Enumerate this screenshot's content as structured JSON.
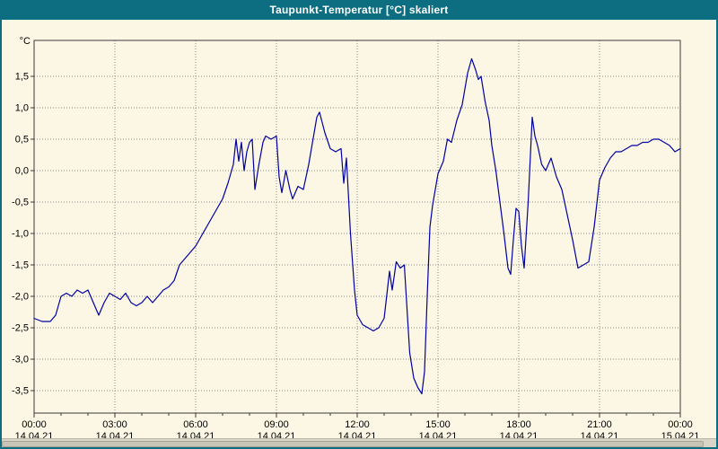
{
  "window": {
    "title": "Taupunkt-Temperatur [°C] skaliert"
  },
  "colors": {
    "titlebar": "#0C6E80",
    "background": "#FBF7E4",
    "line": "#0000A0",
    "grid": "#8a8a8a",
    "plot_border": "#3a3a3a",
    "label_text": "#000000"
  },
  "chart_data": {
    "type": "line",
    "title": "Taupunkt-Temperatur [°C] skaliert",
    "grid": "dotted",
    "legend": "none",
    "y_axis": {
      "unit_label": "°C",
      "min": -3.86,
      "max": 2.07,
      "tick_step": 0.5,
      "tick_values": [
        1.5,
        1.0,
        0.5,
        0.0,
        -0.5,
        -1.0,
        -1.5,
        -2.0,
        -2.5,
        -3.0,
        -3.5
      ],
      "tick_labels": [
        "1,5",
        "1,0",
        "0,5",
        "0,0",
        "-0,5",
        "-1,0",
        "-1,5",
        "-2,0",
        "-2,5",
        "-3,0",
        "-3,5"
      ]
    },
    "x_axis": {
      "min_hour": 0,
      "max_hour": 24,
      "tick_hours": [
        0,
        3,
        6,
        9,
        12,
        15,
        18,
        21,
        24
      ],
      "tick_times": [
        "00:00",
        "03:00",
        "06:00",
        "09:00",
        "12:00",
        "15:00",
        "18:00",
        "21:00",
        "00:00"
      ],
      "tick_dates": [
        "14.04.21",
        "14.04.21",
        "14.04.21",
        "14.04.21",
        "14.04.21",
        "14.04.21",
        "14.04.21",
        "14.04.21",
        "15.04.21"
      ]
    },
    "series": [
      {
        "name": "Taupunkt-Temperatur",
        "color": "#0000A0",
        "points": [
          [
            0,
            -2.35
          ],
          [
            0.3,
            -2.4
          ],
          [
            0.6,
            -2.4
          ],
          [
            0.8,
            -2.3
          ],
          [
            1,
            -2
          ],
          [
            1.2,
            -1.95
          ],
          [
            1.4,
            -2
          ],
          [
            1.6,
            -1.9
          ],
          [
            1.8,
            -1.95
          ],
          [
            2,
            -1.9
          ],
          [
            2.2,
            -2.1
          ],
          [
            2.4,
            -2.3
          ],
          [
            2.6,
            -2.1
          ],
          [
            2.8,
            -1.95
          ],
          [
            3,
            -2
          ],
          [
            3.2,
            -2.05
          ],
          [
            3.4,
            -1.95
          ],
          [
            3.6,
            -2.1
          ],
          [
            3.8,
            -2.15
          ],
          [
            4,
            -2.1
          ],
          [
            4.2,
            -2
          ],
          [
            4.4,
            -2.1
          ],
          [
            4.6,
            -2
          ],
          [
            4.8,
            -1.9
          ],
          [
            5,
            -1.85
          ],
          [
            5.2,
            -1.75
          ],
          [
            5.4,
            -1.5
          ],
          [
            5.6,
            -1.4
          ],
          [
            5.8,
            -1.3
          ],
          [
            6,
            -1.2
          ],
          [
            6.2,
            -1.05
          ],
          [
            6.4,
            -0.9
          ],
          [
            6.6,
            -0.75
          ],
          [
            6.8,
            -0.6
          ],
          [
            7,
            -0.45
          ],
          [
            7.2,
            -0.2
          ],
          [
            7.4,
            0.1
          ],
          [
            7.5,
            0.5
          ],
          [
            7.6,
            0.15
          ],
          [
            7.7,
            0.45
          ],
          [
            7.8,
            0
          ],
          [
            7.9,
            0.3
          ],
          [
            8,
            0.45
          ],
          [
            8.1,
            0.5
          ],
          [
            8.2,
            -0.3
          ],
          [
            8.35,
            0.1
          ],
          [
            8.5,
            0.45
          ],
          [
            8.6,
            0.55
          ],
          [
            8.8,
            0.5
          ],
          [
            9,
            0.55
          ],
          [
            9.1,
            -0.1
          ],
          [
            9.2,
            -0.35
          ],
          [
            9.35,
            0
          ],
          [
            9.5,
            -0.3
          ],
          [
            9.6,
            -0.45
          ],
          [
            9.8,
            -0.25
          ],
          [
            10,
            -0.3
          ],
          [
            10.2,
            0.1
          ],
          [
            10.4,
            0.6
          ],
          [
            10.5,
            0.85
          ],
          [
            10.6,
            0.93
          ],
          [
            10.8,
            0.6
          ],
          [
            11,
            0.35
          ],
          [
            11.2,
            0.3
          ],
          [
            11.4,
            0.35
          ],
          [
            11.5,
            -0.2
          ],
          [
            11.6,
            0.2
          ],
          [
            11.75,
            -1
          ],
          [
            11.9,
            -1.9
          ],
          [
            12,
            -2.3
          ],
          [
            12.2,
            -2.45
          ],
          [
            12.4,
            -2.5
          ],
          [
            12.6,
            -2.55
          ],
          [
            12.8,
            -2.5
          ],
          [
            13,
            -2.35
          ],
          [
            13.2,
            -1.6
          ],
          [
            13.3,
            -1.9
          ],
          [
            13.45,
            -1.45
          ],
          [
            13.6,
            -1.55
          ],
          [
            13.75,
            -1.5
          ],
          [
            13.85,
            -2.2
          ],
          [
            13.95,
            -2.9
          ],
          [
            14.1,
            -3.3
          ],
          [
            14.25,
            -3.45
          ],
          [
            14.4,
            -3.55
          ],
          [
            14.5,
            -3.2
          ],
          [
            14.6,
            -2
          ],
          [
            14.7,
            -0.9
          ],
          [
            14.8,
            -0.55
          ],
          [
            14.9,
            -0.3
          ],
          [
            15,
            -0.05
          ],
          [
            15.2,
            0.15
          ],
          [
            15.35,
            0.5
          ],
          [
            15.5,
            0.45
          ],
          [
            15.7,
            0.8
          ],
          [
            15.9,
            1.05
          ],
          [
            16,
            1.3
          ],
          [
            16.1,
            1.55
          ],
          [
            16.25,
            1.78
          ],
          [
            16.4,
            1.6
          ],
          [
            16.5,
            1.45
          ],
          [
            16.6,
            1.5
          ],
          [
            16.75,
            1.1
          ],
          [
            16.9,
            0.8
          ],
          [
            17,
            0.4
          ],
          [
            17.15,
            0
          ],
          [
            17.3,
            -0.5
          ],
          [
            17.45,
            -1
          ],
          [
            17.6,
            -1.55
          ],
          [
            17.7,
            -1.65
          ],
          [
            17.8,
            -1.1
          ],
          [
            17.9,
            -0.6
          ],
          [
            18,
            -0.65
          ],
          [
            18.1,
            -1.2
          ],
          [
            18.2,
            -1.55
          ],
          [
            18.35,
            -0.5
          ],
          [
            18.5,
            0.85
          ],
          [
            18.6,
            0.55
          ],
          [
            18.7,
            0.4
          ],
          [
            18.85,
            0.1
          ],
          [
            19,
            0
          ],
          [
            19.2,
            0.2
          ],
          [
            19.4,
            -0.1
          ],
          [
            19.6,
            -0.3
          ],
          [
            19.8,
            -0.7
          ],
          [
            20,
            -1.1
          ],
          [
            20.2,
            -1.55
          ],
          [
            20.4,
            -1.5
          ],
          [
            20.6,
            -1.45
          ],
          [
            20.8,
            -0.9
          ],
          [
            21,
            -0.15
          ],
          [
            21.2,
            0.05
          ],
          [
            21.4,
            0.2
          ],
          [
            21.6,
            0.3
          ],
          [
            21.8,
            0.3
          ],
          [
            22,
            0.35
          ],
          [
            22.2,
            0.4
          ],
          [
            22.4,
            0.4
          ],
          [
            22.6,
            0.45
          ],
          [
            22.8,
            0.45
          ],
          [
            23,
            0.5
          ],
          [
            23.2,
            0.5
          ],
          [
            23.4,
            0.45
          ],
          [
            23.6,
            0.4
          ],
          [
            23.8,
            0.3
          ],
          [
            24,
            0.35
          ]
        ]
      }
    ]
  }
}
